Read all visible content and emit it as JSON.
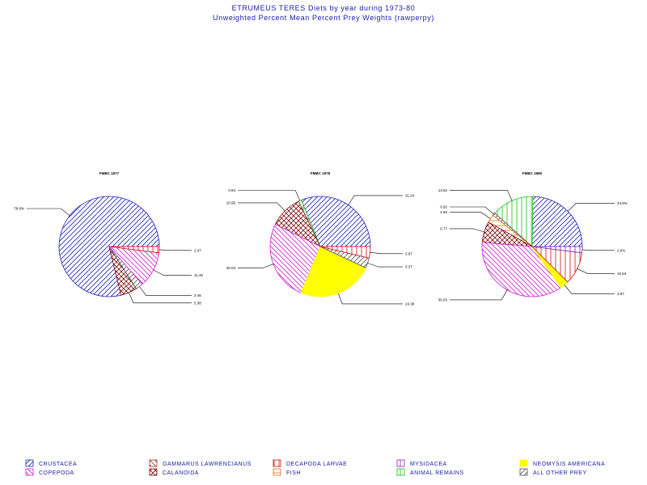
{
  "title": "ETRUMEUS TERES Diets by year during 1973-80",
  "subtitle": "Unweighted Percent Mean Percent Prey  Weights (rawperpy)",
  "categories": {
    "crustacea": {
      "name": "CRUSTACEA",
      "color": "#2020c0",
      "pattern": "diag-up"
    },
    "copepoda": {
      "name": "COPEPODA",
      "color": "#d020d0",
      "pattern": "diag-down"
    },
    "gammarus": {
      "name": "GAMMARUS  LAWRENCIANUS",
      "color": "#a03020",
      "pattern": "diag-down"
    },
    "calanoida": {
      "name": "CALANOIDA",
      "color": "#801010",
      "pattern": "crosshatch"
    },
    "decapoda": {
      "name": "DECAPODA  LARVAE",
      "color": "#d01010",
      "pattern": "vertical"
    },
    "fish": {
      "name": "FISH",
      "color": "#e07010",
      "pattern": "horizontal"
    },
    "mysidacea": {
      "name": "MYSIDACEA",
      "color": "#8020c0",
      "pattern": "vertical"
    },
    "remains": {
      "name": "ANIMAL  REMAINS",
      "color": "#10c010",
      "pattern": "vertical"
    },
    "neomysis": {
      "name": "NEOMYSIS  AMERICANA",
      "color": "#ffff00",
      "pattern": "solid"
    },
    "other": {
      "name": "ALL  OTHER  PREY",
      "color": "#505050",
      "pattern": "diag-up"
    }
  },
  "legend_order": [
    [
      "crustacea",
      "copepoda"
    ],
    [
      "gammarus",
      "calanoida"
    ],
    [
      "decapoda",
      "fish"
    ],
    [
      "mysidacea",
      "remains"
    ],
    [
      "neomysis",
      "other"
    ]
  ],
  "chart_data": [
    {
      "type": "pie",
      "title": "FMBC 1977",
      "slices": [
        {
          "category": "crustacea",
          "value": 78.8,
          "label": "78.8%"
        },
        {
          "category": "calanoida",
          "value": 5.3,
          "label": "5.38"
        },
        {
          "category": "other",
          "value": 2.4,
          "label": "2.46"
        },
        {
          "category": "copepoda",
          "value": 11.5,
          "label": "11.46"
        },
        {
          "category": "decapoda",
          "value": 2.0,
          "label": "2.07"
        }
      ]
    },
    {
      "type": "pie",
      "title": "FMBC 1978",
      "slices": [
        {
          "category": "crustacea",
          "value": 31.2,
          "label": "31.24"
        },
        {
          "category": "remains",
          "value": 0.9,
          "label": "0.84"
        },
        {
          "category": "calanoida",
          "value": 10.6,
          "label": "10.58"
        },
        {
          "category": "copepoda",
          "value": 26.0,
          "label": "26.03"
        },
        {
          "category": "neomysis",
          "value": 24.3,
          "label": "24.38"
        },
        {
          "category": "other",
          "value": 3.3,
          "label": "3.37"
        },
        {
          "category": "decapoda",
          "value": 3.7,
          "label": "3.67"
        }
      ]
    },
    {
      "type": "pie",
      "title": "FMBC 1980",
      "slices": [
        {
          "category": "crustacea",
          "value": 24.8,
          "label": "24.8%"
        },
        {
          "category": "remains",
          "value": 13.6,
          "label": "13.62"
        },
        {
          "category": "other",
          "value": 0.9,
          "label": "0.92"
        },
        {
          "category": "fish",
          "value": 2.6,
          "label": "2.66"
        },
        {
          "category": "calanoida",
          "value": 6.8,
          "label": "6.77"
        },
        {
          "category": "copepoda",
          "value": 36.0,
          "label": "36.03"
        },
        {
          "category": "neomysis",
          "value": 2.8,
          "label": "2.87"
        },
        {
          "category": "decapoda",
          "value": 10.5,
          "label": "10.54"
        },
        {
          "category": "mysidacea",
          "value": 2.0,
          "label": "2.0%"
        }
      ]
    }
  ]
}
